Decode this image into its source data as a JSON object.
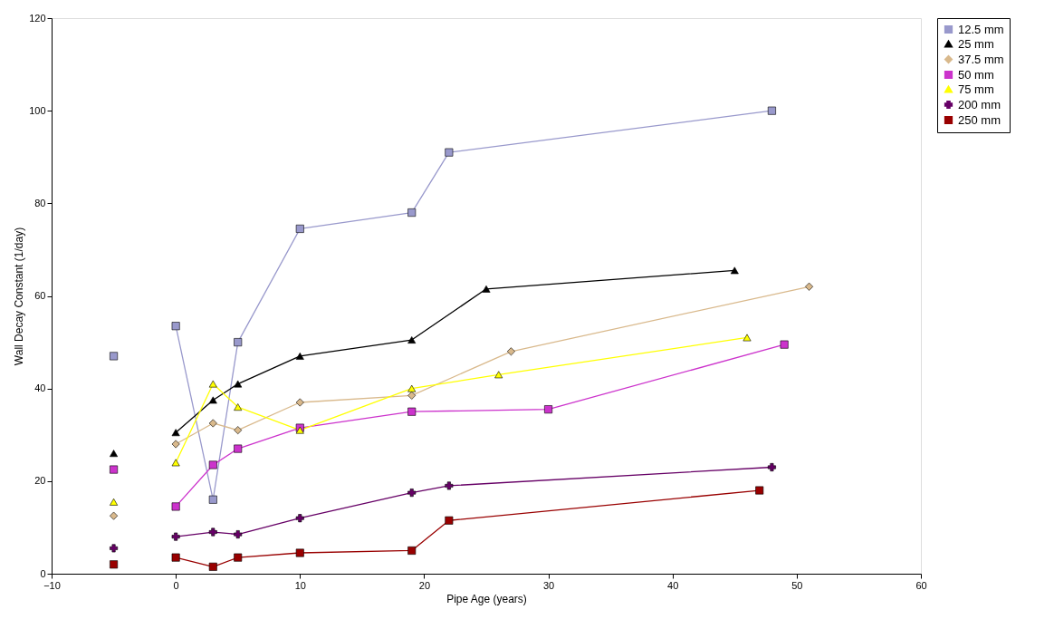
{
  "chart_data": {
    "type": "line",
    "xlabel": "Pipe Age (years)",
    "ylabel": "Wall Decay Constant (1/day)",
    "xlim": [
      -10,
      60
    ],
    "xticks": [
      -10,
      0,
      10,
      20,
      30,
      40,
      50,
      60
    ],
    "ylim": [
      0,
      120
    ],
    "yticks": [
      0,
      20,
      40,
      60,
      80,
      100,
      120
    ],
    "grid": false,
    "legend": "right",
    "line_style": "solid",
    "series": [
      {
        "name": "12.5 mm",
        "color": "#9999cc",
        "marker": "square",
        "x": [
          0,
          3,
          5,
          10,
          19,
          22,
          48
        ],
        "values": [
          53.5,
          16,
          50,
          74.5,
          78,
          91,
          100
        ]
      },
      {
        "name": "25 mm",
        "color": "#000000",
        "marker": "triangle",
        "x": [
          0,
          3,
          5,
          10,
          19,
          25,
          45
        ],
        "values": [
          30.5,
          37.5,
          41,
          47,
          50.5,
          61.5,
          65.5
        ]
      },
      {
        "name": "37.5 mm",
        "color": "#d9b98c",
        "marker": "diamond",
        "x": [
          0,
          3,
          5,
          10,
          19,
          27,
          51
        ],
        "values": [
          28,
          32.5,
          31,
          37,
          38.5,
          48,
          62
        ]
      },
      {
        "name": "50 mm",
        "color": "#cc33cc",
        "marker": "square",
        "x": [
          0,
          3,
          5,
          10,
          19,
          30,
          49
        ],
        "values": [
          14.5,
          23.5,
          27,
          31.5,
          35,
          35.5,
          49.5
        ]
      },
      {
        "name": "75 mm",
        "color": "#ffff00",
        "marker": "triangle",
        "x": [
          0,
          3,
          5,
          10,
          19,
          26,
          46
        ],
        "values": [
          24,
          41,
          36,
          31,
          40,
          43,
          51
        ]
      },
      {
        "name": "200 mm",
        "color": "#660066",
        "marker": "cross",
        "x": [
          0,
          3,
          5,
          10,
          19,
          22,
          48
        ],
        "values": [
          8,
          9,
          8.5,
          12,
          17.5,
          19,
          23
        ]
      },
      {
        "name": "250 mm",
        "color": "#990000",
        "marker": "square",
        "x": [
          0,
          3,
          5,
          10,
          19,
          22,
          47
        ],
        "values": [
          3.5,
          1.5,
          3.5,
          4.5,
          5,
          11.5,
          18
        ]
      },
      {
        "type": "scatter",
        "color": "#9999cc",
        "marker": "square",
        "x": [
          -5
        ],
        "values": [
          47
        ]
      },
      {
        "type": "scatter",
        "color": "#000000",
        "marker": "triangle",
        "x": [
          -5
        ],
        "values": [
          26
        ]
      },
      {
        "type": "scatter",
        "color": "#d9b98c",
        "marker": "diamond",
        "x": [
          -5
        ],
        "values": [
          12.5
        ]
      },
      {
        "type": "scatter",
        "color": "#cc33cc",
        "marker": "square",
        "x": [
          -5
        ],
        "values": [
          22.5
        ]
      },
      {
        "type": "scatter",
        "color": "#ffff00",
        "marker": "triangle",
        "x": [
          -5
        ],
        "values": [
          15.5
        ]
      },
      {
        "type": "scatter",
        "color": "#660066",
        "marker": "cross",
        "x": [
          -5
        ],
        "values": [
          5.5
        ]
      },
      {
        "type": "scatter",
        "color": "#990000",
        "marker": "square",
        "x": [
          -5
        ],
        "values": [
          2
        ]
      }
    ]
  }
}
